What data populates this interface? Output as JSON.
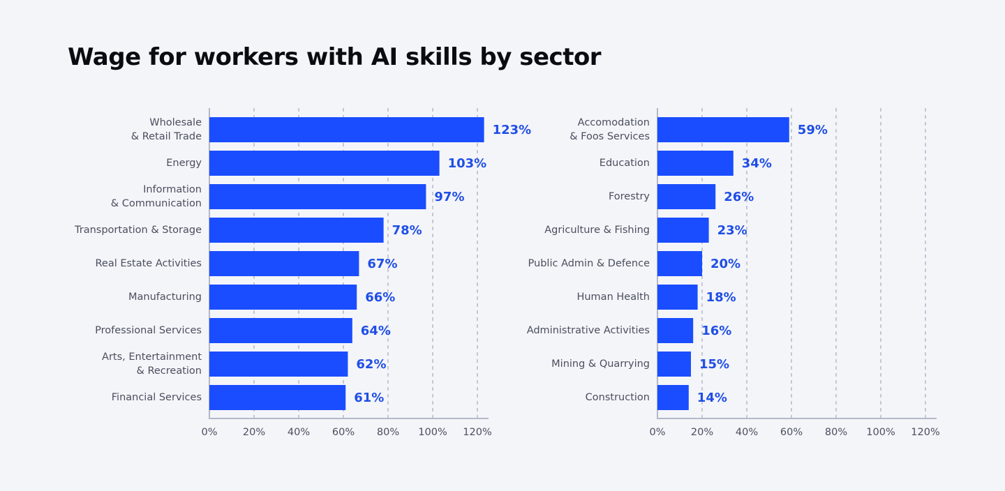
{
  "title": "Wage for workers with AI skills by sector",
  "chart_data": [
    {
      "type": "bar",
      "orientation": "horizontal",
      "color": "#1a4dff",
      "categories": [
        "Wholesale\n& Retail Trade",
        "Energy",
        "Information\n& Communication",
        "Transportation & Storage",
        "Real Estate Activities",
        "Manufacturing",
        "Professional Services",
        "Arts, Entertainment\n& Recreation",
        "Financial Services"
      ],
      "values": [
        123,
        103,
        97,
        78,
        67,
        66,
        64,
        62,
        61
      ],
      "value_labels": [
        "123%",
        "103%",
        "97%",
        "78%",
        "67%",
        "66%",
        "64%",
        "62%",
        "61%"
      ],
      "xlim": [
        0,
        125
      ],
      "xticks": [
        {
          "value": 0,
          "label": "0%"
        },
        {
          "value": 20,
          "label": "20%"
        },
        {
          "value": 40,
          "label": "40%"
        },
        {
          "value": 60,
          "label": "60%"
        },
        {
          "value": 80,
          "label": "80%"
        },
        {
          "value": 100,
          "label": "100%"
        },
        {
          "value": 120,
          "label": "120%"
        }
      ],
      "grid": true
    },
    {
      "type": "bar",
      "orientation": "horizontal",
      "color": "#1a4dff",
      "categories": [
        "Accomodation\n& Foos Services",
        "Education",
        "Forestry",
        "Agriculture & Fishing",
        "Public Admin & Defence",
        "Human Health",
        "Administrative Activities",
        "Mining & Quarrying",
        "Construction"
      ],
      "values": [
        59,
        34,
        26,
        23,
        20,
        18,
        16,
        15,
        14
      ],
      "value_labels": [
        "59%",
        "34%",
        "26%",
        "23%",
        "20%",
        "18%",
        "16%",
        "15%",
        "14%"
      ],
      "xlim": [
        0,
        125
      ],
      "xticks": [
        {
          "value": 0,
          "label": "0%"
        },
        {
          "value": 20,
          "label": "20%"
        },
        {
          "value": 40,
          "label": "40%"
        },
        {
          "value": 60,
          "label": "60%"
        },
        {
          "value": 80,
          "label": "80%"
        },
        {
          "value": 100,
          "label": "100%"
        },
        {
          "value": 120,
          "label": "120%"
        }
      ],
      "grid": true
    }
  ]
}
